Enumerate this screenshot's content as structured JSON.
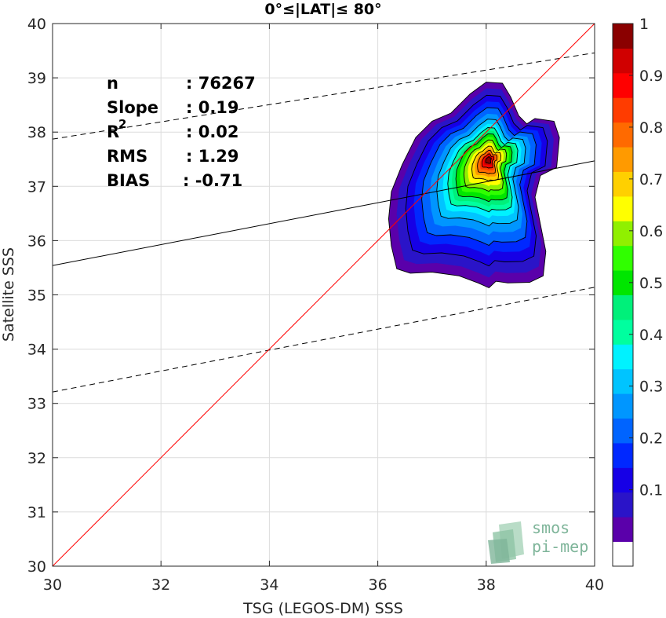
{
  "chart_data": {
    "type": "density-scatter",
    "title": "0°≤|LAT|≤ 80°",
    "xlabel": "TSG (LEGOS-DM) SSS",
    "ylabel": "Satellite SSS",
    "xlim": [
      30,
      40
    ],
    "ylim": [
      30,
      40
    ],
    "xticks": [
      "30",
      "32",
      "34",
      "36",
      "38",
      "40"
    ],
    "yticks": [
      "30",
      "31",
      "32",
      "33",
      "34",
      "35",
      "36",
      "37",
      "38",
      "39",
      "40"
    ],
    "grid": true,
    "stats": [
      {
        "label": "n",
        "value": ": 76267"
      },
      {
        "label": "Slope",
        "value": ": 0.19"
      },
      {
        "label": "R",
        "sup": "2",
        "value": ": 0.02"
      },
      {
        "label": "RMS",
        "value": ": 1.29"
      },
      {
        "label": "BIAS",
        "value": ": -0.71"
      }
    ],
    "identity_line": {
      "x": [
        30,
        40
      ],
      "y": [
        30,
        40
      ],
      "color": "#ff0000"
    },
    "fit_line": {
      "x": [
        30,
        40
      ],
      "y": [
        35.54,
        37.47
      ],
      "color": "#000000"
    },
    "confidence_upper": {
      "x": [
        30,
        40
      ],
      "y": [
        37.87,
        39.46
      ],
      "color": "#000000"
    },
    "confidence_lower": {
      "x": [
        30,
        40
      ],
      "y": [
        33.21,
        35.14
      ],
      "color": "#000000"
    },
    "density_center": {
      "x": 38.05,
      "y": 37.5
    },
    "colorbar": {
      "ticks": [
        "0.1",
        "0.2",
        "0.3",
        "0.4",
        "0.5",
        "0.6",
        "0.7",
        "0.8",
        "0.9",
        "1"
      ],
      "range": [
        0,
        1
      ],
      "colors": [
        "#ffffff",
        "#5a00aa",
        "#2a14c8",
        "#1600e6",
        "#0028ff",
        "#0064ff",
        "#0096ff",
        "#00c4ff",
        "#00f2ff",
        "#00ff9f",
        "#00f07a",
        "#00e600",
        "#30ff00",
        "#90f000",
        "#ffff00",
        "#ffd000",
        "#ff9a00",
        "#ff6a00",
        "#ff3c00",
        "#ff0000",
        "#d00000",
        "#8a0000"
      ]
    },
    "logo_text": [
      "smos",
      "pi-mep"
    ]
  }
}
